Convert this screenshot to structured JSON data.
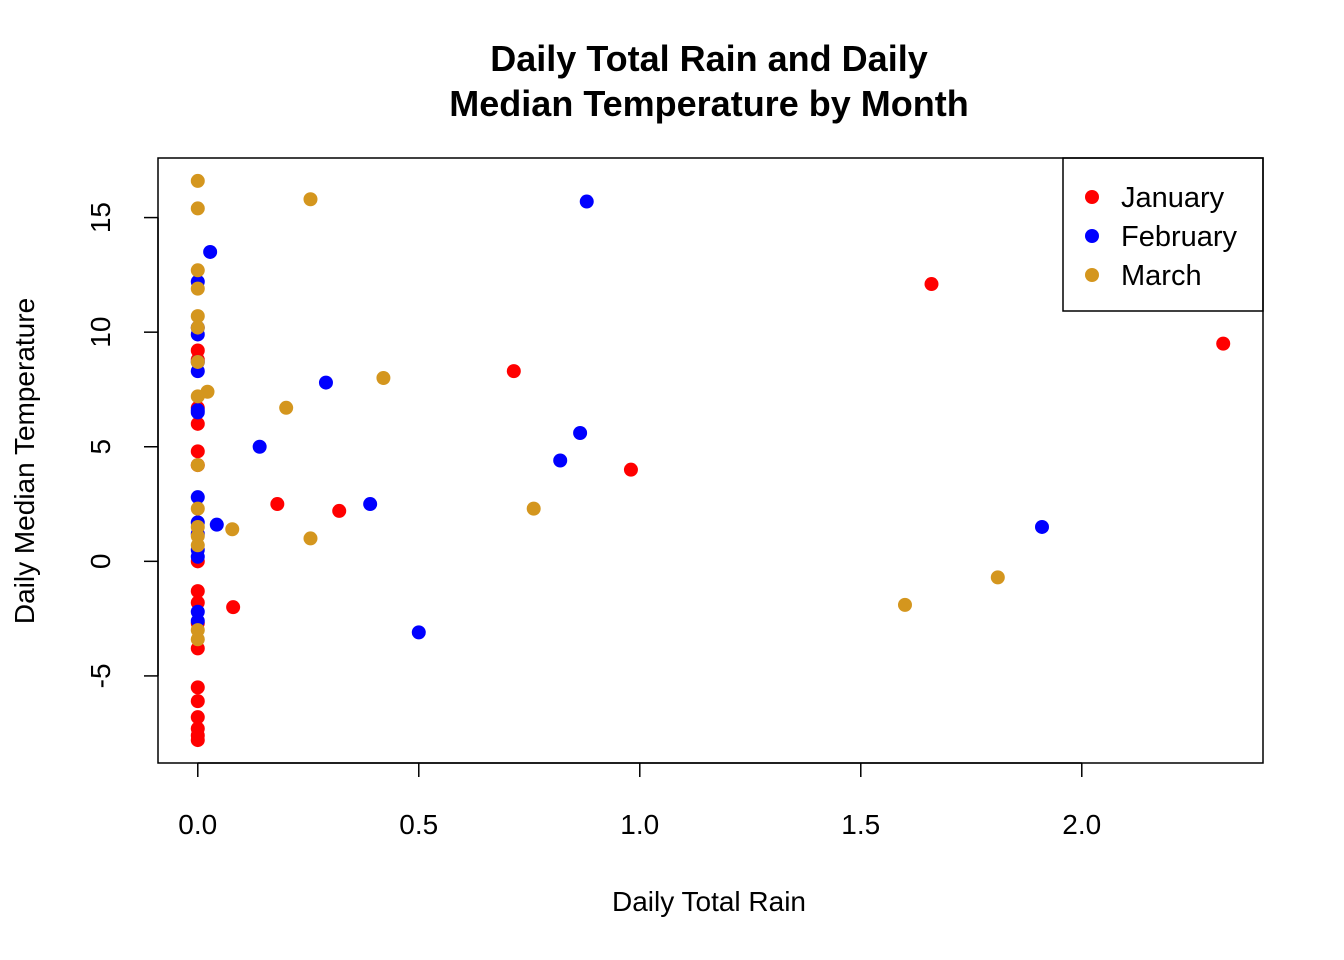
{
  "chart_data": {
    "type": "scatter",
    "title_lines": [
      "Daily Total Rain and Daily",
      "Median Temperature by Month"
    ],
    "xlabel": "Daily Total Rain",
    "ylabel": "Daily Median Temperature",
    "xlim": [
      -0.09,
      2.41
    ],
    "ylim": [
      -8.8,
      17.6
    ],
    "xticks": [
      0.0,
      0.5,
      1.0,
      1.5,
      2.0
    ],
    "xtick_labels": [
      "0.0",
      "0.5",
      "1.0",
      "1.5",
      "2.0"
    ],
    "yticks": [
      -5,
      0,
      5,
      10,
      15
    ],
    "ytick_labels": [
      "-5",
      "0",
      "5",
      "10",
      "15"
    ],
    "legend_position": "top-right",
    "grid": false,
    "series": [
      {
        "name": "January",
        "color": "#ff0000",
        "points": [
          [
            0,
            9.2
          ],
          [
            0,
            8.8
          ],
          [
            0,
            6.7
          ],
          [
            0,
            6.0
          ],
          [
            0,
            4.8
          ],
          [
            0,
            4.2
          ],
          [
            0,
            0.0
          ],
          [
            0,
            -1.3
          ],
          [
            0,
            -1.8
          ],
          [
            0,
            -2.7
          ],
          [
            0,
            -3.8
          ],
          [
            0,
            -5.5
          ],
          [
            0,
            -6.1
          ],
          [
            0,
            -6.8
          ],
          [
            0,
            -7.3
          ],
          [
            0,
            -7.6
          ],
          [
            0,
            -7.8
          ],
          [
            0.08,
            -2.0
          ],
          [
            0.18,
            2.5
          ],
          [
            0.32,
            2.2
          ],
          [
            0.715,
            8.3
          ],
          [
            0.98,
            4.0
          ],
          [
            1.66,
            12.1
          ],
          [
            2.32,
            9.5
          ]
        ]
      },
      {
        "name": "February",
        "color": "#0000ff",
        "points": [
          [
            0,
            12.2
          ],
          [
            0,
            10.2
          ],
          [
            0,
            9.9
          ],
          [
            0,
            8.7
          ],
          [
            0,
            8.3
          ],
          [
            0,
            6.6
          ],
          [
            0,
            6.5
          ],
          [
            0,
            2.8
          ],
          [
            0,
            1.7
          ],
          [
            0,
            1.2
          ],
          [
            0,
            0.5
          ],
          [
            0,
            0.2
          ],
          [
            0,
            -2.2
          ],
          [
            0,
            -2.6
          ],
          [
            0.028,
            13.5
          ],
          [
            0.043,
            1.6
          ],
          [
            0.14,
            5.0
          ],
          [
            0.29,
            7.8
          ],
          [
            0.39,
            2.5
          ],
          [
            0.5,
            -3.1
          ],
          [
            0.82,
            4.4
          ],
          [
            0.865,
            5.6
          ],
          [
            0.88,
            15.7
          ],
          [
            1.91,
            1.5
          ]
        ]
      },
      {
        "name": "March",
        "color": "#d4961e",
        "points": [
          [
            0,
            16.6
          ],
          [
            0,
            15.4
          ],
          [
            0,
            12.7
          ],
          [
            0,
            11.9
          ],
          [
            0,
            10.7
          ],
          [
            0,
            10.2
          ],
          [
            0,
            8.7
          ],
          [
            0,
            7.2
          ],
          [
            0,
            4.2
          ],
          [
            0,
            2.3
          ],
          [
            0,
            1.5
          ],
          [
            0,
            1.1
          ],
          [
            0,
            0.7
          ],
          [
            0,
            -3.0
          ],
          [
            0,
            -3.4
          ],
          [
            0.022,
            7.4
          ],
          [
            0.078,
            1.4
          ],
          [
            0.2,
            6.7
          ],
          [
            0.255,
            15.8
          ],
          [
            0.255,
            1.0
          ],
          [
            0.42,
            8.0
          ],
          [
            0.76,
            2.3
          ],
          [
            1.6,
            -1.9
          ],
          [
            1.81,
            -0.7
          ]
        ]
      }
    ]
  }
}
